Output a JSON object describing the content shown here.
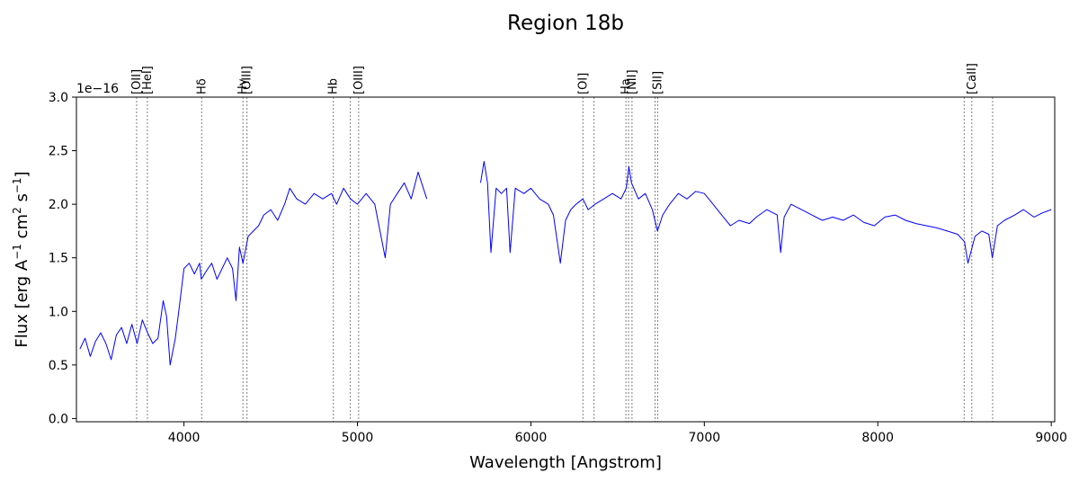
{
  "chart_data": {
    "type": "line",
    "title": "Region 18b",
    "xlabel": "Wavelength [Angstrom]",
    "ylabel_parts": [
      "Flux [erg A",
      "−1",
      " cm",
      "2",
      " s",
      "−1",
      "]"
    ],
    "ylabel": "Flux [erg A^-1 cm^2 s^-1]",
    "offset_text": "1e−16",
    "xlim": [
      3380,
      9020
    ],
    "ylim": [
      -0.03,
      3.0
    ],
    "x_ticks": [
      4000,
      5000,
      6000,
      7000,
      8000,
      9000
    ],
    "x_tick_labels": [
      "4000",
      "5000",
      "6000",
      "7000",
      "8000",
      "9000"
    ],
    "y_ticks": [
      0.0,
      0.5,
      1.0,
      1.5,
      2.0,
      2.5,
      3.0
    ],
    "y_tick_labels": [
      "0.0",
      "0.5",
      "1.0",
      "1.5",
      "2.0",
      "2.5",
      "3.0"
    ],
    "grid": false,
    "line_color": "#0000ff",
    "marker_color": "#808080",
    "emission_lines": [
      {
        "label": "[OII]",
        "wavelength": 3727
      },
      {
        "label": "[HeI]",
        "wavelength": 3789
      },
      {
        "label": "Hδ",
        "wavelength": 4102
      },
      {
        "label": "Hγ",
        "wavelength": 4340
      },
      {
        "label": "[OIII]",
        "wavelength": 4363
      },
      {
        "label": "Hb",
        "wavelength": 4861
      },
      {
        "label": "[OIII]",
        "wavelength": 4959
      },
      {
        "label": "[OIII]",
        "wavelength": 5007
      },
      {
        "label": "[OI]",
        "wavelength": 6300
      },
      {
        "label": "[OI]",
        "wavelength": 6364
      },
      {
        "label": "Ha",
        "wavelength": 6548
      },
      {
        "label": "Ha",
        "wavelength": 6563
      },
      {
        "label": "[NII]",
        "wavelength": 6583
      },
      {
        "label": "[SII]",
        "wavelength": 6716
      },
      {
        "label": "[SII]",
        "wavelength": 6731
      },
      {
        "label": "[CaII]",
        "wavelength": 8498
      },
      {
        "label": "[CaII]",
        "wavelength": 8542
      },
      {
        "label": "[CaII]",
        "wavelength": 8662
      }
    ],
    "printed_line_labels": [
      {
        "label": "[OII]",
        "wavelength": 3727
      },
      {
        "label": "[HeI]",
        "wavelength": 3789
      },
      {
        "label": "Hδ",
        "wavelength": 4102
      },
      {
        "label": "Hγ",
        "wavelength": 4340
      },
      {
        "label": "[OIII]",
        "wavelength": 4363
      },
      {
        "label": "Hb",
        "wavelength": 4861
      },
      {
        "label": "[OIII]",
        "wavelength": 5007
      },
      {
        "label": "[OI]",
        "wavelength": 6300
      },
      {
        "label": "Ha",
        "wavelength": 6548
      },
      {
        "label": "[NII]",
        "wavelength": 6583
      },
      {
        "label": "[SII]",
        "wavelength": 6731
      },
      {
        "label": "[CaII]",
        "wavelength": 8542
      }
    ],
    "series": [
      {
        "segments": [
          [
            [
              3400,
              0.65
            ],
            [
              3430,
              0.75
            ],
            [
              3460,
              0.58
            ],
            [
              3490,
              0.72
            ],
            [
              3520,
              0.8
            ],
            [
              3550,
              0.7
            ],
            [
              3580,
              0.55
            ],
            [
              3610,
              0.78
            ],
            [
              3640,
              0.85
            ],
            [
              3670,
              0.7
            ],
            [
              3700,
              0.88
            ],
            [
              3730,
              0.7
            ],
            [
              3760,
              0.92
            ],
            [
              3790,
              0.8
            ],
            [
              3820,
              0.7
            ],
            [
              3850,
              0.75
            ],
            [
              3880,
              1.1
            ],
            [
              3900,
              0.95
            ],
            [
              3920,
              0.5
            ],
            [
              3950,
              0.75
            ],
            [
              3970,
              1.0
            ],
            [
              4000,
              1.4
            ],
            [
              4030,
              1.45
            ],
            [
              4060,
              1.35
            ],
            [
              4090,
              1.45
            ],
            [
              4100,
              1.3
            ],
            [
              4130,
              1.38
            ],
            [
              4160,
              1.45
            ],
            [
              4190,
              1.3
            ],
            [
              4220,
              1.4
            ],
            [
              4250,
              1.5
            ],
            [
              4280,
              1.4
            ],
            [
              4300,
              1.1
            ],
            [
              4320,
              1.6
            ],
            [
              4340,
              1.45
            ],
            [
              4370,
              1.7
            ],
            [
              4400,
              1.75
            ],
            [
              4430,
              1.8
            ],
            [
              4460,
              1.9
            ],
            [
              4500,
              1.95
            ],
            [
              4540,
              1.85
            ],
            [
              4580,
              2.0
            ],
            [
              4610,
              2.15
            ],
            [
              4650,
              2.05
            ],
            [
              4700,
              2.0
            ],
            [
              4750,
              2.1
            ],
            [
              4800,
              2.05
            ],
            [
              4850,
              2.1
            ],
            [
              4880,
              2.0
            ],
            [
              4920,
              2.15
            ],
            [
              4960,
              2.05
            ],
            [
              5000,
              2.0
            ],
            [
              5050,
              2.1
            ],
            [
              5100,
              2.0
            ],
            [
              5130,
              1.75
            ],
            [
              5160,
              1.5
            ],
            [
              5190,
              2.0
            ],
            [
              5230,
              2.1
            ],
            [
              5270,
              2.2
            ],
            [
              5310,
              2.05
            ],
            [
              5350,
              2.3
            ],
            [
              5380,
              2.15
            ],
            [
              5400,
              2.05
            ]
          ],
          [
            [
              5710,
              2.2
            ],
            [
              5730,
              2.4
            ],
            [
              5750,
              2.2
            ],
            [
              5770,
              1.55
            ],
            [
              5800,
              2.15
            ],
            [
              5830,
              2.1
            ],
            [
              5860,
              2.15
            ],
            [
              5880,
              1.55
            ],
            [
              5910,
              2.15
            ],
            [
              5960,
              2.1
            ],
            [
              6000,
              2.15
            ],
            [
              6050,
              2.05
            ],
            [
              6100,
              2.0
            ],
            [
              6130,
              1.9
            ],
            [
              6170,
              1.45
            ],
            [
              6200,
              1.85
            ],
            [
              6230,
              1.95
            ],
            [
              6260,
              2.0
            ],
            [
              6300,
              2.05
            ],
            [
              6330,
              1.95
            ],
            [
              6370,
              2.0
            ],
            [
              6420,
              2.05
            ],
            [
              6470,
              2.1
            ],
            [
              6520,
              2.05
            ],
            [
              6550,
              2.15
            ],
            [
              6565,
              2.35
            ],
            [
              6580,
              2.2
            ],
            [
              6620,
              2.05
            ],
            [
              6660,
              2.1
            ],
            [
              6700,
              1.95
            ],
            [
              6730,
              1.75
            ],
            [
              6760,
              1.9
            ],
            [
              6800,
              2.0
            ],
            [
              6850,
              2.1
            ],
            [
              6900,
              2.05
            ],
            [
              6950,
              2.12
            ],
            [
              7000,
              2.1
            ],
            [
              7050,
              2.0
            ],
            [
              7100,
              1.9
            ],
            [
              7150,
              1.8
            ],
            [
              7200,
              1.85
            ],
            [
              7260,
              1.82
            ],
            [
              7300,
              1.88
            ],
            [
              7360,
              1.95
            ],
            [
              7420,
              1.9
            ],
            [
              7440,
              1.55
            ],
            [
              7460,
              1.88
            ],
            [
              7500,
              2.0
            ],
            [
              7560,
              1.95
            ],
            [
              7620,
              1.9
            ],
            [
              7680,
              1.85
            ],
            [
              7740,
              1.88
            ],
            [
              7800,
              1.85
            ],
            [
              7860,
              1.9
            ],
            [
              7920,
              1.83
            ],
            [
              7980,
              1.8
            ],
            [
              8040,
              1.88
            ],
            [
              8100,
              1.9
            ],
            [
              8160,
              1.85
            ],
            [
              8220,
              1.82
            ],
            [
              8280,
              1.8
            ],
            [
              8340,
              1.78
            ],
            [
              8400,
              1.75
            ],
            [
              8460,
              1.72
            ],
            [
              8500,
              1.65
            ],
            [
              8520,
              1.45
            ],
            [
              8560,
              1.7
            ],
            [
              8600,
              1.75
            ],
            [
              8640,
              1.72
            ],
            [
              8660,
              1.5
            ],
            [
              8690,
              1.8
            ],
            [
              8730,
              1.85
            ],
            [
              8790,
              1.9
            ],
            [
              8840,
              1.95
            ],
            [
              8900,
              1.88
            ],
            [
              8950,
              1.92
            ],
            [
              9000,
              1.95
            ]
          ]
        ]
      }
    ]
  }
}
